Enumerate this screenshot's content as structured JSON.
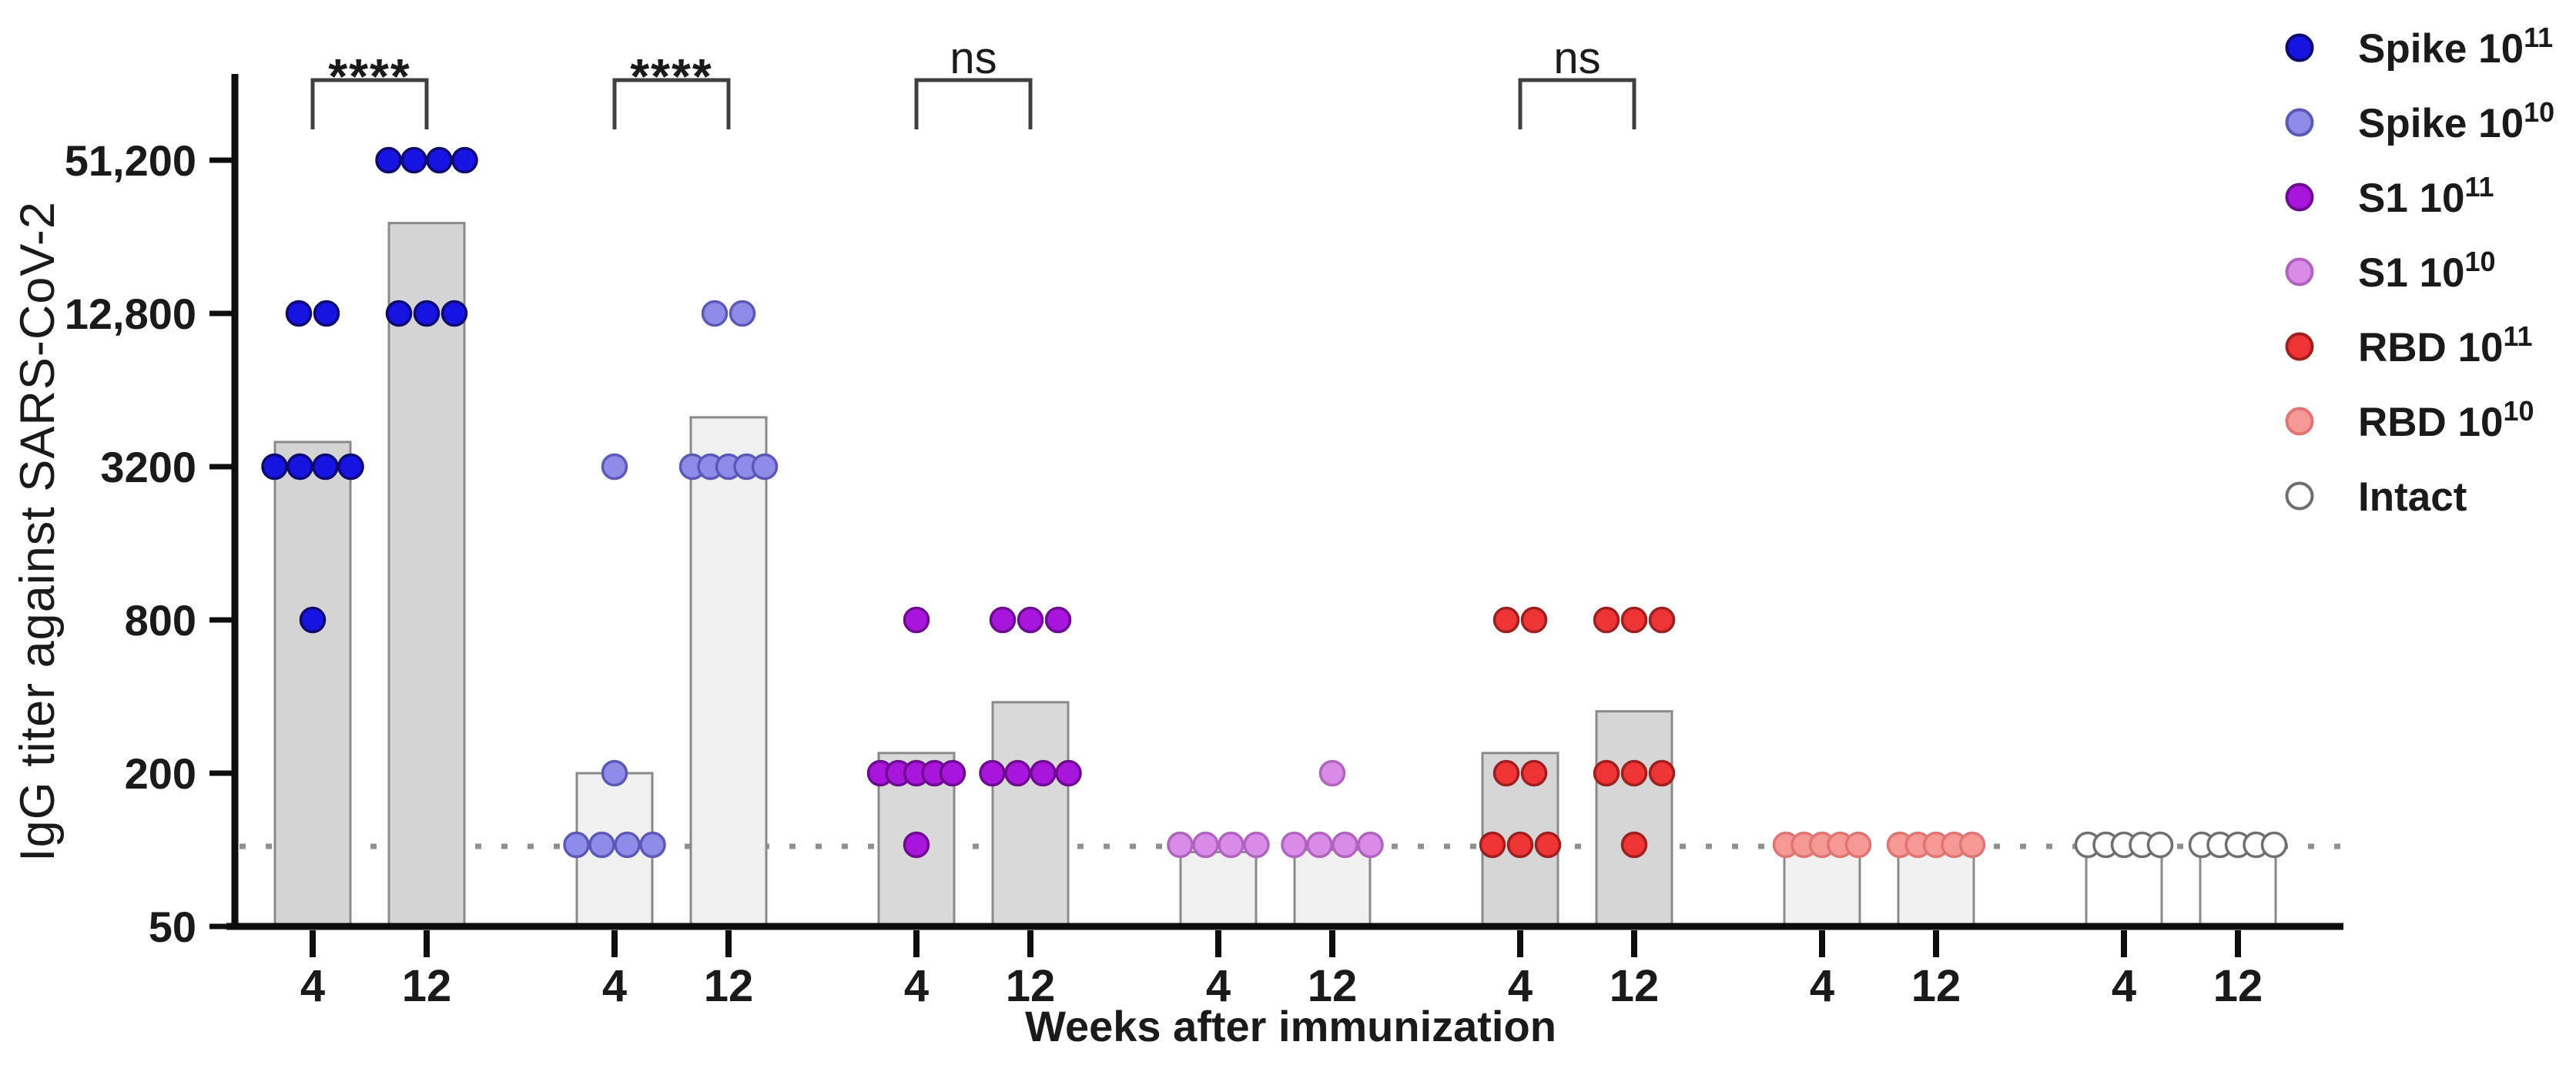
{
  "chart_data": {
    "type": "scatter",
    "subtype": "grouped-dot-plot-with-geometric-mean-bars",
    "title": "",
    "xlabel": "Weeks after immunization",
    "ylabel": "IgG titer against SARS-CoV-2",
    "y_axis": {
      "scale": "log4",
      "min": 50,
      "max": 102400,
      "ticks": [
        {
          "value": 50,
          "label": "50"
        },
        {
          "value": 200,
          "label": "200"
        },
        {
          "value": 800,
          "label": "800"
        },
        {
          "value": 3200,
          "label": "3200"
        },
        {
          "value": 12800,
          "label": "12,800"
        },
        {
          "value": 51200,
          "label": "51,200"
        }
      ],
      "detection_limit_line": 100,
      "grid": false
    },
    "weeks": [
      "4",
      "12"
    ],
    "colors": {
      "axis": "#0d0d0d",
      "bar_stroke": "#8a8a8a",
      "bracket": "#3f3f3f",
      "dotted_line": "#8f8f8f"
    },
    "groups": [
      {
        "name": "Spike 10^11",
        "marker_color": "#1713e3",
        "marker_stroke": "#0d0a70",
        "bar_fill": "#d4d4d4",
        "timepoints": [
          {
            "week": "4",
            "bar_gmt": 4000,
            "points": [
              {
                "value": 12800,
                "count": 2
              },
              {
                "value": 3200,
                "count": 4
              },
              {
                "value": 800,
                "count": 1
              }
            ]
          },
          {
            "week": "12",
            "bar_gmt": 29000,
            "points": [
              {
                "value": 51200,
                "count": 4
              },
              {
                "value": 12800,
                "count": 3
              }
            ]
          }
        ]
      },
      {
        "name": "Spike 10^10",
        "marker_color": "#8f8ce8",
        "marker_stroke": "#5b58b8",
        "bar_fill": "#f0f0f0",
        "timepoints": [
          {
            "week": "4",
            "bar_gmt": 200,
            "points": [
              {
                "value": 3200,
                "count": 1
              },
              {
                "value": 200,
                "count": 1
              },
              {
                "value": 100,
                "count": 4
              }
            ]
          },
          {
            "week": "12",
            "bar_gmt": 5000,
            "points": [
              {
                "value": 12800,
                "count": 2
              },
              {
                "value": 3200,
                "count": 5
              }
            ]
          }
        ]
      },
      {
        "name": "S1 10^11",
        "marker_color": "#a816dc",
        "marker_stroke": "#6e0b92",
        "bar_fill": "#d9d9d9",
        "timepoints": [
          {
            "week": "4",
            "bar_gmt": 240,
            "points": [
              {
                "value": 800,
                "count": 1
              },
              {
                "value": 200,
                "count": 5
              },
              {
                "value": 100,
                "count": 1
              }
            ]
          },
          {
            "week": "12",
            "bar_gmt": 380,
            "points": [
              {
                "value": 800,
                "count": 3
              },
              {
                "value": 200,
                "count": 4
              }
            ]
          }
        ]
      },
      {
        "name": "S1 10^10",
        "marker_color": "#d98be8",
        "marker_stroke": "#b063bf",
        "bar_fill": "#f0f0f0",
        "timepoints": [
          {
            "week": "4",
            "bar_gmt": 98,
            "points": [
              {
                "value": 100,
                "count": 4
              }
            ]
          },
          {
            "week": "12",
            "bar_gmt": 100,
            "points": [
              {
                "value": 200,
                "count": 1
              },
              {
                "value": 100,
                "count": 4
              }
            ]
          }
        ]
      },
      {
        "name": "RBD 10^11",
        "marker_color": "#ee3434",
        "marker_stroke": "#9e1f1f",
        "bar_fill": "#d6d6d6",
        "timepoints": [
          {
            "week": "4",
            "bar_gmt": 240,
            "points": [
              {
                "value": 800,
                "count": 2
              },
              {
                "value": 200,
                "count": 2
              },
              {
                "value": 100,
                "count": 3
              }
            ]
          },
          {
            "week": "12",
            "bar_gmt": 350,
            "points": [
              {
                "value": 800,
                "count": 3
              },
              {
                "value": 200,
                "count": 3
              },
              {
                "value": 100,
                "count": 1
              }
            ]
          }
        ]
      },
      {
        "name": "RBD 10^10",
        "marker_color": "#f59896",
        "marker_stroke": "#e07573",
        "bar_fill": "#f1f1f1",
        "timepoints": [
          {
            "week": "4",
            "bar_gmt": 98,
            "points": [
              {
                "value": 100,
                "count": 5
              }
            ]
          },
          {
            "week": "12",
            "bar_gmt": 98,
            "points": [
              {
                "value": 100,
                "count": 5
              }
            ]
          }
        ]
      },
      {
        "name": "Intact",
        "marker_color": "#ffffff",
        "marker_stroke": "#6f6f6f",
        "bar_fill": "#ffffff",
        "timepoints": [
          {
            "week": "4",
            "bar_gmt": 98,
            "points": [
              {
                "value": 100,
                "count": 5
              }
            ]
          },
          {
            "week": "12",
            "bar_gmt": 98,
            "points": [
              {
                "value": 100,
                "count": 5
              }
            ]
          }
        ]
      }
    ],
    "significance_brackets": [
      {
        "group_index": 0,
        "comparison": "week 4 vs week 12",
        "label": "****"
      },
      {
        "group_index": 1,
        "comparison": "week 4 vs week 12",
        "label": "****"
      },
      {
        "group_index": 2,
        "comparison": "week 4 vs week 12",
        "label": "ns"
      },
      {
        "group_index": 4,
        "comparison": "week 4 vs week 12",
        "label": "ns"
      }
    ],
    "legend": {
      "position": "right",
      "items": [
        {
          "text": "Spike 10",
          "sup": "11",
          "color": "#1713e3",
          "stroke": "#0d0a70"
        },
        {
          "text": "Spike 10",
          "sup": "10",
          "color": "#8f8ce8",
          "stroke": "#5b58b8"
        },
        {
          "text": "S1 10",
          "sup": "11",
          "color": "#a816dc",
          "stroke": "#6e0b92"
        },
        {
          "text": "S1 10",
          "sup": "10",
          "color": "#d98be8",
          "stroke": "#b063bf"
        },
        {
          "text": "RBD 10",
          "sup": "11",
          "color": "#ee3434",
          "stroke": "#9e1f1f"
        },
        {
          "text": "RBD 10",
          "sup": "10",
          "color": "#f59896",
          "stroke": "#e07573"
        },
        {
          "text": "Intact",
          "sup": "",
          "color": "#ffffff",
          "stroke": "#6f6f6f"
        }
      ]
    }
  }
}
